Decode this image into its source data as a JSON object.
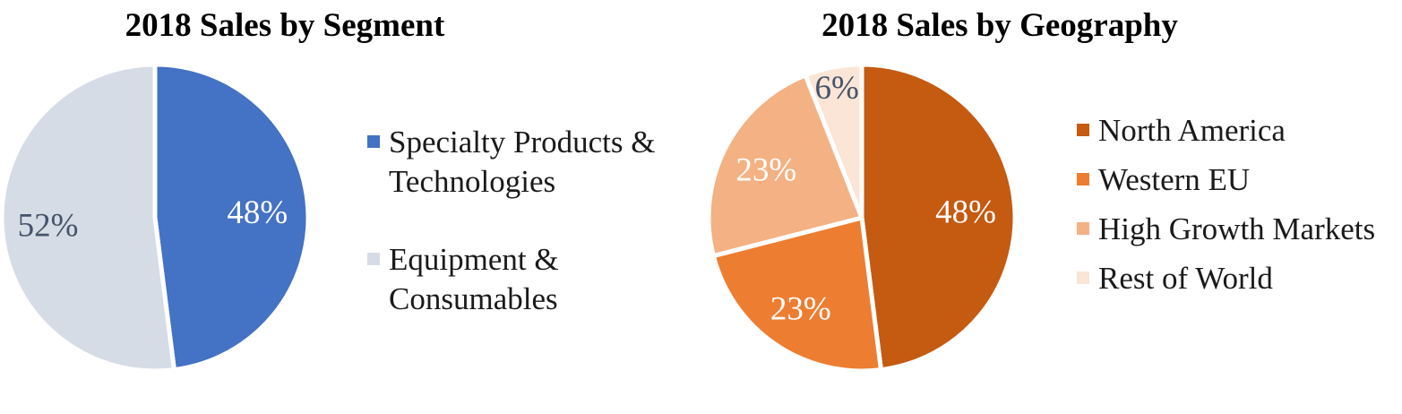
{
  "chart_data": [
    {
      "type": "pie",
      "title": "2018 Sales by Segment",
      "start": "12 o'clock",
      "direction": "clockwise",
      "categories": [
        "Specialty Products & Technologies",
        "Equipment & Consumables"
      ],
      "legend_lines": [
        [
          "Specialty Products &",
          "Technologies"
        ],
        [
          "Equipment &",
          "Consumables"
        ]
      ],
      "values": [
        48,
        52
      ],
      "data_labels": [
        "48%",
        "52%"
      ],
      "colors": [
        "#4472c4",
        "#d6dce5"
      ],
      "label_colors": [
        "#ffffff",
        "#44546a"
      ],
      "legend_position": "right"
    },
    {
      "type": "pie",
      "title": "2018 Sales by Geography",
      "start": "12 o'clock",
      "direction": "clockwise",
      "categories": [
        "North America",
        "Western EU",
        "High Growth Markets",
        "Rest of World"
      ],
      "legend_lines": [
        [
          "North America"
        ],
        [
          "Western EU"
        ],
        [
          "High Growth Markets"
        ],
        [
          "Rest of World"
        ]
      ],
      "values": [
        48,
        23,
        23,
        6
      ],
      "data_labels": [
        "48%",
        "23%",
        "23%",
        "6%"
      ],
      "colors": [
        "#c55a11",
        "#ed7d31",
        "#f4b183",
        "#fbe5d6"
      ],
      "label_colors": [
        "#ffffff",
        "#ffffff",
        "#ffffff",
        "#44546a"
      ],
      "legend_position": "right"
    }
  ]
}
